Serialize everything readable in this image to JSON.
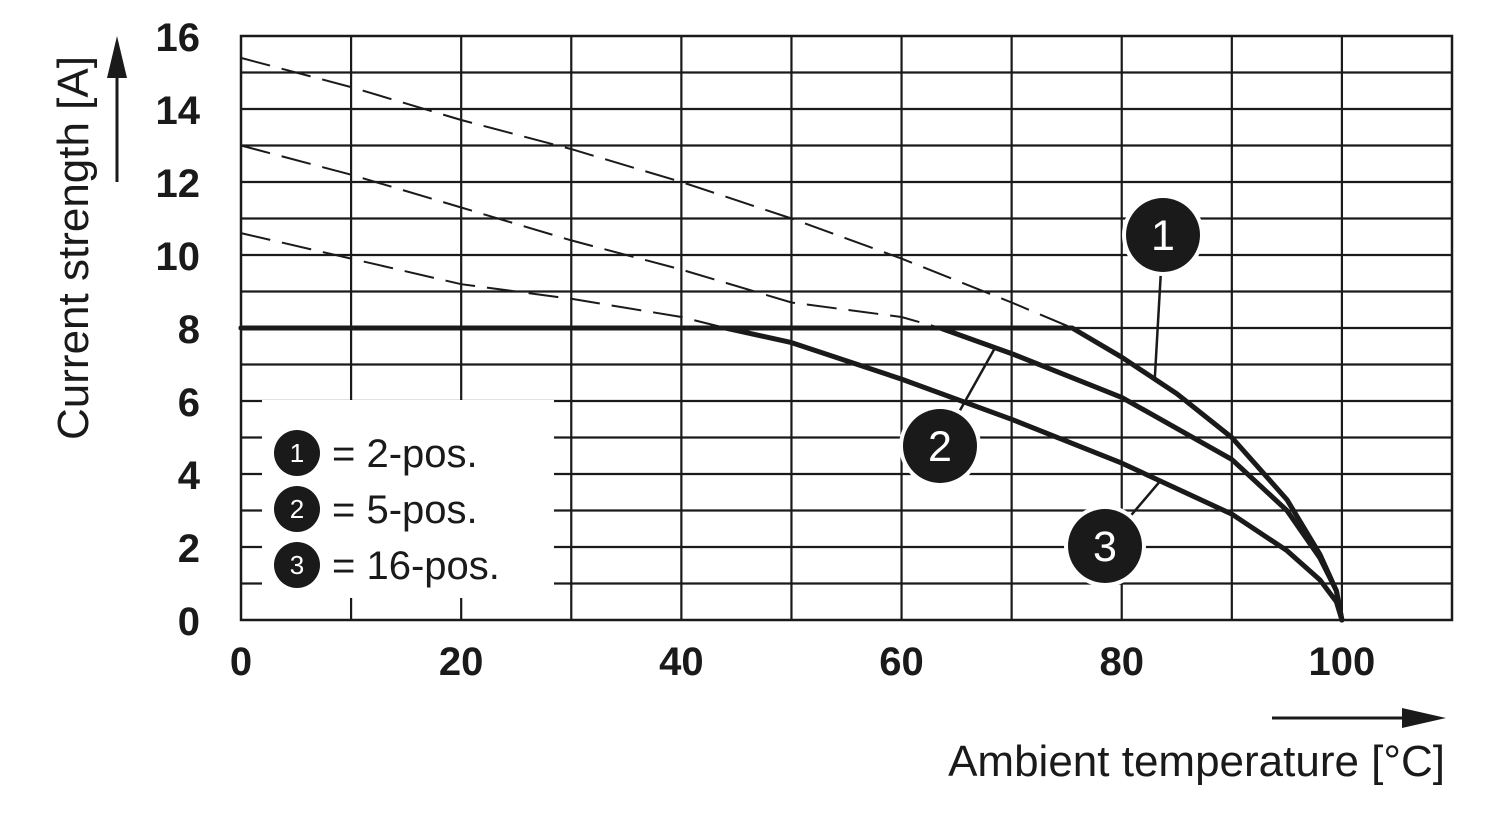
{
  "chart_data": {
    "type": "line",
    "xlabel": "Ambient temperature [°C]",
    "ylabel": "Current strength [A]",
    "xlim": [
      0,
      110
    ],
    "ylim": [
      0,
      16
    ],
    "x_ticks": [
      0,
      20,
      40,
      60,
      80,
      100
    ],
    "y_ticks": [
      0,
      2,
      4,
      6,
      8,
      10,
      12,
      14,
      16
    ],
    "x_tick_labels": [
      "0",
      "20",
      "40",
      "60",
      "80",
      "100"
    ],
    "y_tick_labels": [
      "0",
      "2",
      "4",
      "6",
      "8",
      "10",
      "12",
      "14",
      "16"
    ],
    "grid": true,
    "colors": {
      "line": "#1a1a1a",
      "grid": "#1a1a1a",
      "background": "#ffffff"
    },
    "series": [
      {
        "name": "2-pos.",
        "badge": "1",
        "x": [
          0,
          10,
          20,
          30,
          40,
          50,
          60,
          70,
          75.5,
          80,
          85,
          90,
          95,
          98,
          99.5,
          100
        ],
        "y": [
          15.4,
          14.6,
          13.7,
          12.9,
          12.0,
          11.0,
          9.9,
          8.7,
          8.0,
          7.2,
          6.2,
          5.0,
          3.3,
          1.8,
          0.8,
          0
        ],
        "dashed_until_x": 75.5
      },
      {
        "name": "5-pos.",
        "badge": "2",
        "x": [
          0,
          10,
          20,
          30,
          40,
          50,
          60,
          63.5,
          70,
          80,
          90,
          95,
          98,
          99.5,
          100
        ],
        "y": [
          13.0,
          12.2,
          11.3,
          10.4,
          9.6,
          8.7,
          8.3,
          8.0,
          7.3,
          6.1,
          4.4,
          3.0,
          1.7,
          0.8,
          0
        ],
        "dashed_until_x": 63.5
      },
      {
        "name": "16-pos.",
        "badge": "3",
        "x": [
          0,
          10,
          20,
          30,
          40,
          44,
          50,
          60,
          70,
          80,
          90,
          95,
          98,
          99.5,
          100
        ],
        "y": [
          10.6,
          9.9,
          9.2,
          8.8,
          8.3,
          8.0,
          7.6,
          6.6,
          5.5,
          4.3,
          2.9,
          1.9,
          1.1,
          0.5,
          0
        ],
        "dashed_until_x": 44
      }
    ],
    "legend": {
      "placement": "bottom-left",
      "entries": [
        {
          "badge": "1",
          "text": "= 2-pos."
        },
        {
          "badge": "2",
          "text": "= 5-pos."
        },
        {
          "badge": "3",
          "text": "= 16-pos."
        }
      ]
    },
    "callouts": [
      {
        "badge": "1",
        "x": 83.0,
        "y": 6.5
      },
      {
        "badge": "2",
        "x": 68.5,
        "y": 7.0
      },
      {
        "badge": "3",
        "x": 83.5,
        "y": 4.3
      }
    ]
  }
}
